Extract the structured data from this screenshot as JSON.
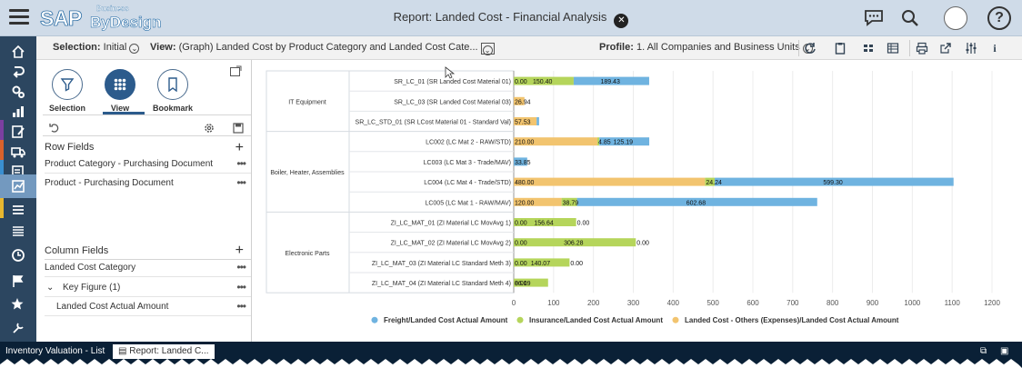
{
  "shell": {
    "logo_main": "SAP",
    "logo_super": "Business",
    "logo_sub": "ByDesign",
    "title": "Report: Landed Cost - Financial Analysis"
  },
  "toolbar": {
    "selection_label": "Selection:",
    "selection_value": "Initial",
    "view_label": "View:",
    "view_value": "(Graph) Landed Cost by Product Category and Landed Cost Cate...",
    "profile_label": "Profile:",
    "profile_value": "1. All Companies and Business Units"
  },
  "panel": {
    "buttons": [
      {
        "label": "Selection",
        "icon": "funnel-icon"
      },
      {
        "label": "View",
        "icon": "grid-icon"
      },
      {
        "label": "Bookmark",
        "icon": "bookmark-icon"
      }
    ],
    "row_fields_title": "Row Fields",
    "row_fields": [
      "Product Category - Purchasing Document",
      "Product - Purchasing Document"
    ],
    "column_fields_title": "Column Fields",
    "column_fields": [
      "Landed Cost Category",
      "Key Figure (1)",
      "Landed Cost Actual Amount"
    ]
  },
  "chart_data": {
    "type": "bar",
    "orientation": "horizontal",
    "stacked": true,
    "groups": [
      {
        "name": "IT Equipment",
        "items": [
          "SR_LC_01 (SR Landed Cost Material 01)",
          "SR_LC_03 (SR Landed Cost Material 03)",
          "SR_LC_STD_01 (SR LCost Material 01 - Standard Val)"
        ]
      },
      {
        "name": "Boiler, Heater, Assemblies",
        "items": [
          "LC002 (LC Mat 2 - RAW/STD)",
          "LC003 (LC Mat 3 - Trade/MAV)",
          "LC004 (LC Mat 4 - Trade/STD)",
          "LC005 (LC Mat 1 - RAW/MAV)"
        ]
      },
      {
        "name": "Electronic Parts",
        "items": [
          "ZI_LC_MAT_01 (ZI Material LC MovAvg 1)",
          "ZI_LC_MAT_02 (ZI Material LC MovAvg 2)",
          "ZI_LC_MAT_03 (ZI Material LC Standard Meth 3)",
          "ZI_LC_MAT_04 (ZI Material LC Standard Meth 4)"
        ]
      }
    ],
    "series": [
      {
        "name": "Landed Cost - Others (Expenses)/Landed Cost Actual Amount",
        "color": "#f2c46f"
      },
      {
        "name": "Insurance/Landed Cost Actual Amount",
        "color": "#b5d55b"
      },
      {
        "name": "Freight/Landed Cost Actual Amount",
        "color": "#6fb3e0"
      }
    ],
    "rows": [
      {
        "others": 0.0,
        "insurance": 150.4,
        "freight": 189.43,
        "labels": [
          "0.00",
          "150.40",
          "189.43"
        ]
      },
      {
        "others": 26.94,
        "insurance": 0,
        "freight": 0,
        "labels": [
          "26.94"
        ]
      },
      {
        "others": 57.53,
        "insurance": 0,
        "freight": 6,
        "labels": [
          "57.53"
        ]
      },
      {
        "others": 210.0,
        "insurance": 4.85,
        "freight": 125.19,
        "labels": [
          "210.00",
          "4.85",
          "125.19"
        ]
      },
      {
        "others": 0,
        "insurance": 0,
        "freight": 33.85,
        "labels": [
          "33.85"
        ]
      },
      {
        "others": 480.0,
        "insurance": 24.24,
        "freight": 599.3,
        "labels": [
          "480.00",
          "24.24",
          "599.30"
        ]
      },
      {
        "others": 120.0,
        "insurance": 38.79,
        "freight": 602.68,
        "labels": [
          "120.00",
          "38.79",
          "602.68"
        ]
      },
      {
        "others": 0,
        "insurance": 156.64,
        "freight": 0,
        "labels": [
          "0.00",
          "156.64",
          "0.00"
        ]
      },
      {
        "others": 0,
        "insurance": 306.28,
        "freight": 0,
        "labels": [
          "0.00",
          "306.28",
          "0.00"
        ]
      },
      {
        "others": 0,
        "insurance": 140.07,
        "freight": 0,
        "labels": [
          "0.00",
          "140.07",
          "0.00"
        ]
      },
      {
        "others": 0,
        "insurance": 86.19,
        "freight": 0,
        "labels": [
          "86.19",
          "0.00"
        ]
      }
    ],
    "xticks": [
      0,
      100,
      200,
      300,
      400,
      500,
      600,
      700,
      800,
      900,
      1000,
      1100,
      1200
    ],
    "xlim": [
      0,
      1200
    ],
    "legend": [
      "Freight/Landed Cost Actual Amount",
      "Insurance/Landed Cost Actual Amount",
      "Landed Cost - Others (Expenses)/Landed Cost Actual Amount"
    ],
    "legend_position": "bottom",
    "grid": true
  },
  "taskbar": {
    "items": [
      "Inventory Valuation - List",
      "Report: Landed C..."
    ]
  }
}
